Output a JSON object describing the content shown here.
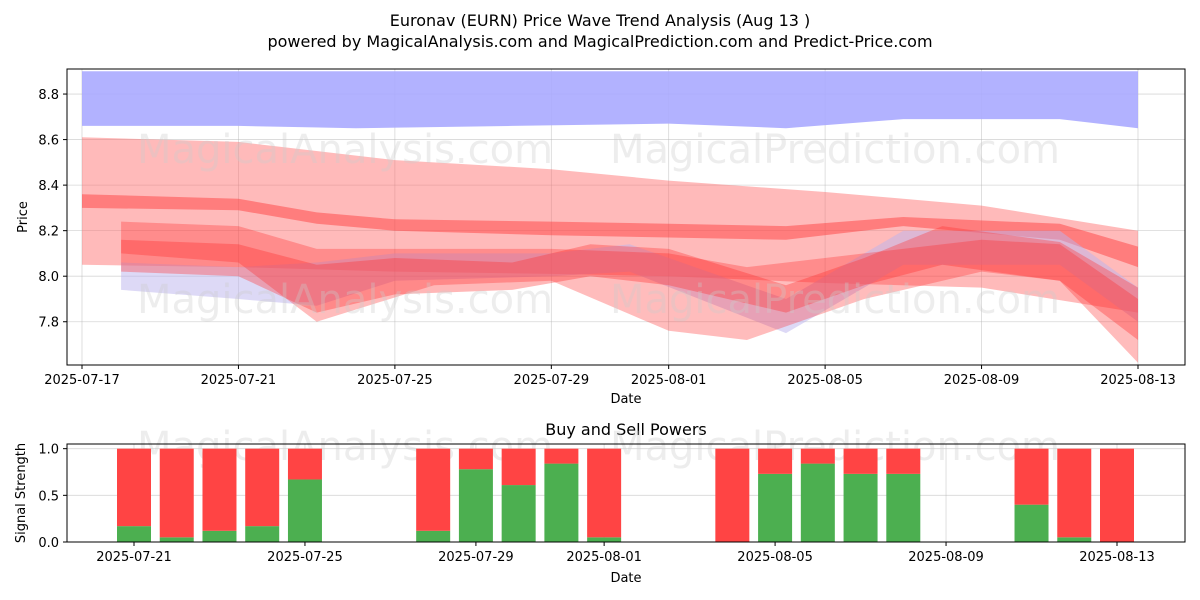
{
  "title_line1": "Euronav (EURN) Price Wave Trend Analysis (Aug 13 )",
  "title_line2": "powered by MagicalAnalysis.com and MagicalPrediction.com and Predict-Price.com",
  "watermarks": [
    "MagicalAnalysis.com",
    "MagicalPrediction.com"
  ],
  "colors": {
    "upper_band": "#aaaaff",
    "red_band": "#ff0000",
    "buy": "#4caf50",
    "sell": "#ff4444"
  },
  "chart_data": [
    {
      "type": "area",
      "title": "",
      "xlabel": "Date",
      "ylabel": "Price",
      "ylim": [
        7.61,
        8.91
      ],
      "grid": true,
      "x_ticks": [
        "2025-07-17",
        "2025-07-21",
        "2025-07-25",
        "2025-07-29",
        "2025-08-01",
        "2025-08-05",
        "2025-08-09",
        "2025-08-13"
      ],
      "y_ticks": [
        "7.8",
        "8.0",
        "8.2",
        "8.4",
        "8.6",
        "8.8"
      ],
      "bands": [
        {
          "name": "upper",
          "color": "#aaaaff",
          "opacity": 0.9,
          "x": [
            "2025-07-17",
            "2025-07-21",
            "2025-07-24",
            "2025-07-28",
            "2025-08-01",
            "2025-08-04",
            "2025-08-07",
            "2025-08-11",
            "2025-08-13"
          ],
          "upper": [
            8.9,
            8.9,
            8.9,
            8.9,
            8.9,
            8.9,
            8.9,
            8.9,
            8.9
          ],
          "lower": [
            8.66,
            8.66,
            8.65,
            8.66,
            8.67,
            8.65,
            8.69,
            8.69,
            8.65
          ]
        },
        {
          "name": "wide",
          "color": "#ff6666",
          "opacity": 0.45,
          "x": [
            "2025-07-17",
            "2025-07-21",
            "2025-07-25",
            "2025-07-29",
            "2025-08-01",
            "2025-08-05",
            "2025-08-09",
            "2025-08-13"
          ],
          "upper": [
            8.61,
            8.59,
            8.51,
            8.47,
            8.42,
            8.37,
            8.31,
            8.2
          ],
          "lower": [
            8.05,
            8.04,
            8.02,
            8.01,
            8.0,
            7.97,
            7.95,
            7.84
          ]
        },
        {
          "name": "mid",
          "color": "#ff3333",
          "opacity": 0.45,
          "x": [
            "2025-07-17",
            "2025-07-21",
            "2025-07-23",
            "2025-07-25",
            "2025-07-29",
            "2025-08-01",
            "2025-08-04",
            "2025-08-07",
            "2025-08-11",
            "2025-08-13"
          ],
          "upper": [
            8.36,
            8.34,
            8.28,
            8.25,
            8.24,
            8.23,
            8.22,
            8.26,
            8.23,
            8.13
          ],
          "lower": [
            8.3,
            8.29,
            8.23,
            8.2,
            8.18,
            8.17,
            8.16,
            8.22,
            8.16,
            8.04
          ]
        },
        {
          "name": "lavender",
          "color": "#bbb4ee",
          "opacity": 0.5,
          "x": [
            "2025-07-18",
            "2025-07-21",
            "2025-07-23",
            "2025-07-25",
            "2025-07-29",
            "2025-07-31",
            "2025-08-04",
            "2025-08-07",
            "2025-08-11",
            "2025-08-13"
          ],
          "upper": [
            8.06,
            8.04,
            8.06,
            8.1,
            8.1,
            8.14,
            7.9,
            8.2,
            8.2,
            7.95
          ],
          "lower": [
            7.94,
            7.9,
            7.87,
            7.98,
            8.0,
            8.02,
            7.75,
            8.05,
            8.05,
            7.8
          ]
        },
        {
          "name": "wave1",
          "color": "#ff3030",
          "opacity": 0.35,
          "x": [
            "2025-07-18",
            "2025-07-21",
            "2025-07-23",
            "2025-07-25",
            "2025-07-28",
            "2025-07-30",
            "2025-08-01",
            "2025-08-04",
            "2025-08-06",
            "2025-08-08",
            "2025-08-11",
            "2025-08-13"
          ],
          "upper": [
            8.16,
            8.14,
            8.05,
            8.08,
            8.06,
            8.14,
            8.12,
            7.96,
            8.08,
            8.22,
            8.15,
            7.95
          ],
          "lower": [
            8.02,
            8.0,
            7.84,
            7.92,
            7.94,
            8.0,
            7.96,
            7.84,
            7.96,
            8.05,
            7.98,
            7.72
          ]
        },
        {
          "name": "wave2",
          "color": "#ff2020",
          "opacity": 0.3,
          "x": [
            "2025-07-18",
            "2025-07-21",
            "2025-07-23",
            "2025-07-26",
            "2025-07-29",
            "2025-08-01",
            "2025-08-03",
            "2025-08-06",
            "2025-08-09",
            "2025-08-11",
            "2025-08-13"
          ],
          "upper": [
            8.24,
            8.22,
            8.12,
            8.12,
            8.12,
            8.1,
            8.04,
            8.1,
            8.16,
            8.14,
            7.9
          ],
          "lower": [
            8.1,
            8.06,
            7.8,
            7.96,
            7.98,
            7.76,
            7.72,
            7.9,
            8.02,
            7.98,
            7.62
          ]
        }
      ]
    },
    {
      "type": "bar",
      "title": "Buy and Sell Powers",
      "xlabel": "Date",
      "ylabel": "Signal Strength",
      "ylim": [
        0,
        1.05
      ],
      "x_ticks": [
        "2025-07-21",
        "2025-07-25",
        "2025-07-29",
        "2025-08-01",
        "2025-08-05",
        "2025-08-09",
        "2025-08-13"
      ],
      "y_ticks": [
        "0.0",
        "0.5",
        "1.0"
      ],
      "categories": [
        "2025-07-21",
        "2025-07-22",
        "2025-07-23",
        "2025-07-24",
        "2025-07-25",
        "2025-07-28",
        "2025-07-29",
        "2025-07-30",
        "2025-07-31",
        "2025-08-01",
        "2025-08-04",
        "2025-08-05",
        "2025-08-06",
        "2025-08-07",
        "2025-08-08",
        "2025-08-11",
        "2025-08-12",
        "2025-08-13"
      ],
      "series": [
        {
          "name": "Buy",
          "values": [
            0.17,
            0.05,
            0.12,
            0.17,
            0.67,
            0.12,
            0.78,
            0.61,
            0.84,
            0.05,
            0.0,
            0.73,
            0.84,
            0.73,
            0.73,
            0.4,
            0.05,
            0.0
          ]
        },
        {
          "name": "Sell",
          "values": [
            0.83,
            0.95,
            0.88,
            0.83,
            0.33,
            0.88,
            0.22,
            0.39,
            0.16,
            0.95,
            1.0,
            0.27,
            0.16,
            0.27,
            0.27,
            0.6,
            0.95,
            1.0
          ]
        }
      ]
    }
  ]
}
